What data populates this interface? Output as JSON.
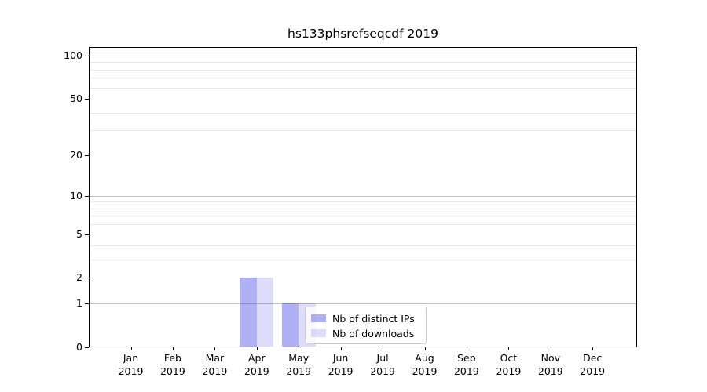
{
  "chart_data": {
    "type": "bar",
    "title": "hs133phsrefseqcdf 2019",
    "categories": [
      "Jan 2019",
      "Feb 2019",
      "Mar 2019",
      "Apr 2019",
      "May 2019",
      "Jun 2019",
      "Jul 2019",
      "Aug 2019",
      "Sep 2019",
      "Oct 2019",
      "Nov 2019",
      "Dec 2019"
    ],
    "series": [
      {
        "name": "Nb of distinct IPs",
        "color": "rgba(30,30,225,0.35)",
        "values": [
          0,
          0,
          0,
          2,
          1,
          0,
          0,
          0,
          0,
          0,
          0,
          0
        ]
      },
      {
        "name": "Nb of downloads",
        "color": "rgba(30,30,225,0.15)",
        "values": [
          0,
          0,
          0,
          2,
          1,
          0,
          0,
          0,
          0,
          0,
          0,
          0
        ]
      }
    ],
    "xlabel": "",
    "ylabel": "",
    "yscale": "log10(1+x)",
    "ylim": [
      0,
      115
    ],
    "y_major_ticks": [
      0,
      1,
      2,
      5,
      10,
      20,
      50,
      100
    ],
    "y_tick_labels": [
      "0",
      "1",
      "2",
      "5",
      "10",
      "20",
      "50",
      "100"
    ],
    "y_major_gridlines": [
      1,
      10,
      100
    ],
    "y_minor_gridlines": [
      3,
      4,
      6,
      7,
      8,
      9,
      30,
      40,
      60,
      70,
      80,
      90
    ],
    "grid": true,
    "legend_position": "lower right inside plot"
  },
  "legend": {
    "items": [
      "Nb of distinct IPs",
      "Nb of downloads"
    ]
  },
  "colors": {
    "bar_distinct_ips_rendered": "#aaaaf3",
    "bar_downloads_rendered": "#dcdcf8",
    "grid_major": "#c3c3c3",
    "grid_minor": "#e9e9e9",
    "spine": "#000000",
    "text": "#000000",
    "legend_border": "#cccccc",
    "background": "#ffffff"
  }
}
